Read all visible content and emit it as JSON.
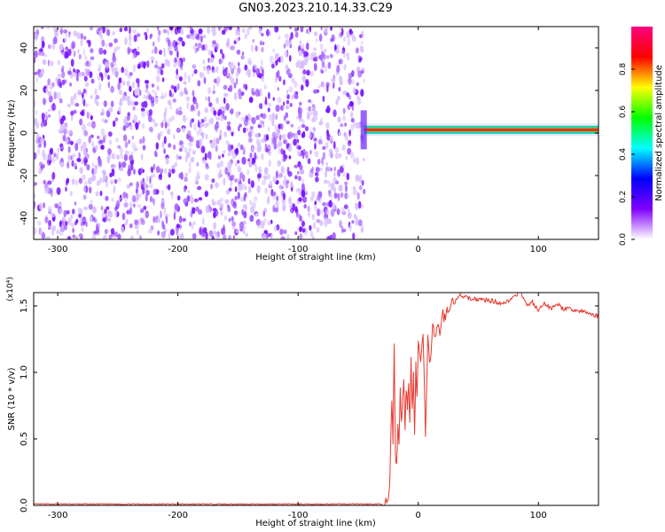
{
  "title": "GN03.2023.210.14.33.C29",
  "chart_data": [
    {
      "type": "heatmap",
      "name": "spectrogram",
      "xlabel": "Height of straight line (km)",
      "ylabel": "Frequency (Hz)",
      "xlim": [
        -320,
        150
      ],
      "ylim": [
        -50,
        50
      ],
      "x_ticks": [
        -300,
        -200,
        -100,
        0,
        100
      ],
      "y_ticks": [
        -40,
        -20,
        0,
        20,
        40
      ],
      "noise_region_x": [
        -320,
        -45
      ],
      "signal_band": {
        "x_start": -45,
        "x_end": 150,
        "frequency": 1.5
      },
      "colorbar": {
        "label": "Normalized spectral amplitude",
        "range": [
          0,
          1
        ],
        "ticks": [
          "0.0",
          "0.2",
          "0.4",
          "0.6",
          "0.8"
        ],
        "tick_values": [
          0,
          0.2,
          0.4,
          0.6,
          0.8
        ],
        "colors": [
          "#ffffff",
          "#8000ff",
          "#0000ff",
          "#00ffff",
          "#00ff00",
          "#ffff00",
          "#ff0000",
          "#ff0080"
        ]
      }
    },
    {
      "type": "line",
      "name": "snr",
      "xlabel": "Height of straight line (km)",
      "ylabel": "SNR (10 * v/v)",
      "y_multiplier": "(x10⁴)",
      "xlim": [
        -320,
        150
      ],
      "ylim": [
        0,
        1.6
      ],
      "x_ticks": [
        -300,
        -200,
        -100,
        0,
        100
      ],
      "y_ticks": [
        "0.0",
        "0.5",
        "1.0",
        "1.5"
      ],
      "y_tick_values": [
        0,
        0.5,
        1.0,
        1.5
      ],
      "color": "#e8392f",
      "x": [
        -320,
        -200,
        -100,
        -30,
        -25,
        -24,
        -23,
        -22,
        -21,
        -20,
        -19,
        -18,
        -17,
        -16,
        -15,
        -14,
        -13,
        -12,
        -11,
        -10,
        -9,
        -8,
        -7,
        -6,
        -5,
        -4,
        -3,
        -2,
        -1,
        0,
        2,
        4,
        6,
        8,
        10,
        12,
        14,
        16,
        18,
        20,
        22,
        24,
        26,
        28,
        30,
        35,
        40,
        50,
        60,
        70,
        80,
        85,
        90,
        95,
        100,
        105,
        110,
        115,
        120,
        130,
        140,
        150
      ],
      "y": [
        0.01,
        0.01,
        0.01,
        0.01,
        0.02,
        0.1,
        0.4,
        0.8,
        0.5,
        1.18,
        0.4,
        0.3,
        0.6,
        0.45,
        0.9,
        0.6,
        0.8,
        0.95,
        0.55,
        0.9,
        0.7,
        0.95,
        0.6,
        1.1,
        0.7,
        1.0,
        0.5,
        1.05,
        0.8,
        1.2,
        1.1,
        1.3,
        0.55,
        1.25,
        1.05,
        1.4,
        1.25,
        1.35,
        1.3,
        1.45,
        1.4,
        1.5,
        1.45,
        1.55,
        1.52,
        1.58,
        1.56,
        1.55,
        1.54,
        1.52,
        1.56,
        1.62,
        1.5,
        1.53,
        1.46,
        1.52,
        1.48,
        1.52,
        1.48,
        1.47,
        1.45,
        1.42
      ]
    }
  ]
}
